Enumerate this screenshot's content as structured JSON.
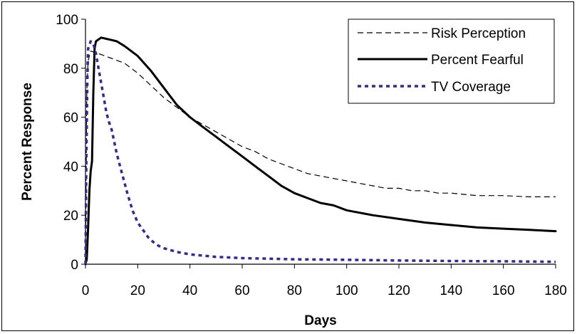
{
  "chart_data": {
    "type": "line",
    "xlabel": "Days",
    "ylabel": "Percent Response",
    "xlim": [
      0,
      180
    ],
    "ylim": [
      0,
      100
    ],
    "x_ticks": [
      0,
      20,
      40,
      60,
      80,
      100,
      120,
      140,
      160,
      180
    ],
    "y_ticks": [
      0,
      20,
      40,
      60,
      80,
      100
    ],
    "grid": false,
    "legend_position": "top-right",
    "series": [
      {
        "name": "Risk Perception",
        "style": "dashed",
        "color": "#000000",
        "points": [
          [
            0,
            0
          ],
          [
            0.5,
            70
          ],
          [
            1,
            83
          ],
          [
            2,
            87
          ],
          [
            5,
            86
          ],
          [
            10,
            84
          ],
          [
            15,
            82
          ],
          [
            20,
            78
          ],
          [
            25,
            73
          ],
          [
            30,
            68
          ],
          [
            35,
            64
          ],
          [
            40,
            60
          ],
          [
            45,
            57
          ],
          [
            50,
            54
          ],
          [
            55,
            51
          ],
          [
            60,
            48
          ],
          [
            65,
            46
          ],
          [
            70,
            43
          ],
          [
            75,
            41
          ],
          [
            80,
            39
          ],
          [
            85,
            37
          ],
          [
            90,
            36
          ],
          [
            95,
            35
          ],
          [
            100,
            34
          ],
          [
            105,
            33
          ],
          [
            110,
            32
          ],
          [
            115,
            31
          ],
          [
            120,
            31
          ],
          [
            125,
            30
          ],
          [
            130,
            30
          ],
          [
            135,
            29
          ],
          [
            140,
            29
          ],
          [
            150,
            28
          ],
          [
            160,
            28
          ],
          [
            170,
            27.5
          ],
          [
            180,
            27.5
          ]
        ]
      },
      {
        "name": "Percent Fearful",
        "style": "solid",
        "color": "#000000",
        "points": [
          [
            0,
            0
          ],
          [
            0.5,
            2
          ],
          [
            1,
            15
          ],
          [
            1.5,
            30
          ],
          [
            2,
            38
          ],
          [
            2.5,
            42
          ],
          [
            3,
            70
          ],
          [
            3.5,
            88
          ],
          [
            4,
            91
          ],
          [
            6,
            92.5
          ],
          [
            8,
            92
          ],
          [
            10,
            91.5
          ],
          [
            12,
            91
          ],
          [
            15,
            89
          ],
          [
            20,
            85
          ],
          [
            25,
            79
          ],
          [
            30,
            72
          ],
          [
            35,
            65
          ],
          [
            40,
            60
          ],
          [
            45,
            56
          ],
          [
            50,
            52
          ],
          [
            55,
            48
          ],
          [
            60,
            44
          ],
          [
            65,
            40
          ],
          [
            70,
            36
          ],
          [
            75,
            32
          ],
          [
            80,
            29
          ],
          [
            85,
            27
          ],
          [
            90,
            25
          ],
          [
            95,
            24
          ],
          [
            100,
            22
          ],
          [
            110,
            20
          ],
          [
            120,
            18.5
          ],
          [
            130,
            17
          ],
          [
            140,
            16
          ],
          [
            150,
            15
          ],
          [
            160,
            14.5
          ],
          [
            170,
            14
          ],
          [
            180,
            13.5
          ]
        ]
      },
      {
        "name": "TV Coverage",
        "style": "dotted",
        "color": "#3b2a82",
        "points": [
          [
            0,
            0
          ],
          [
            0.3,
            40
          ],
          [
            0.7,
            75
          ],
          [
            1,
            88
          ],
          [
            2,
            91
          ],
          [
            3,
            90
          ],
          [
            4,
            86
          ],
          [
            5,
            80
          ],
          [
            6,
            74
          ],
          [
            7,
            68
          ],
          [
            8,
            62
          ],
          [
            9,
            58
          ],
          [
            10,
            55
          ],
          [
            11,
            50
          ],
          [
            12,
            45
          ],
          [
            14,
            37
          ],
          [
            16,
            29
          ],
          [
            18,
            22
          ],
          [
            20,
            17
          ],
          [
            22,
            14
          ],
          [
            24,
            11
          ],
          [
            26,
            9
          ],
          [
            28,
            7.5
          ],
          [
            30,
            6.5
          ],
          [
            35,
            5
          ],
          [
            40,
            4
          ],
          [
            50,
            3
          ],
          [
            60,
            2.5
          ],
          [
            80,
            2
          ],
          [
            100,
            1.8
          ],
          [
            120,
            1.5
          ],
          [
            140,
            1.3
          ],
          [
            160,
            1.2
          ],
          [
            180,
            1
          ]
        ]
      }
    ]
  }
}
